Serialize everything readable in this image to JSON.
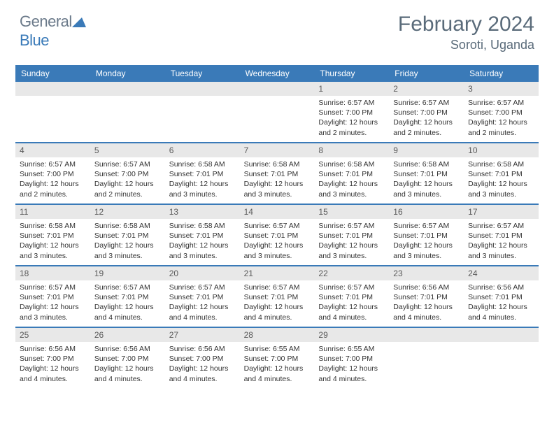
{
  "brand": {
    "name_part1": "General",
    "name_part2": "Blue"
  },
  "title": "February 2024",
  "location": "Soroti, Uganda",
  "colors": {
    "header_bg": "#3a7ab8",
    "header_text": "#ffffff",
    "daynum_bg": "#e8e8e8",
    "text": "#333333",
    "title_color": "#5a6b7a"
  },
  "day_headers": [
    "Sunday",
    "Monday",
    "Tuesday",
    "Wednesday",
    "Thursday",
    "Friday",
    "Saturday"
  ],
  "weeks": [
    [
      {
        "n": "",
        "sr": "",
        "ss": "",
        "dl": ""
      },
      {
        "n": "",
        "sr": "",
        "ss": "",
        "dl": ""
      },
      {
        "n": "",
        "sr": "",
        "ss": "",
        "dl": ""
      },
      {
        "n": "",
        "sr": "",
        "ss": "",
        "dl": ""
      },
      {
        "n": "1",
        "sr": "Sunrise: 6:57 AM",
        "ss": "Sunset: 7:00 PM",
        "dl": "Daylight: 12 hours and 2 minutes."
      },
      {
        "n": "2",
        "sr": "Sunrise: 6:57 AM",
        "ss": "Sunset: 7:00 PM",
        "dl": "Daylight: 12 hours and 2 minutes."
      },
      {
        "n": "3",
        "sr": "Sunrise: 6:57 AM",
        "ss": "Sunset: 7:00 PM",
        "dl": "Daylight: 12 hours and 2 minutes."
      }
    ],
    [
      {
        "n": "4",
        "sr": "Sunrise: 6:57 AM",
        "ss": "Sunset: 7:00 PM",
        "dl": "Daylight: 12 hours and 2 minutes."
      },
      {
        "n": "5",
        "sr": "Sunrise: 6:57 AM",
        "ss": "Sunset: 7:00 PM",
        "dl": "Daylight: 12 hours and 2 minutes."
      },
      {
        "n": "6",
        "sr": "Sunrise: 6:58 AM",
        "ss": "Sunset: 7:01 PM",
        "dl": "Daylight: 12 hours and 3 minutes."
      },
      {
        "n": "7",
        "sr": "Sunrise: 6:58 AM",
        "ss": "Sunset: 7:01 PM",
        "dl": "Daylight: 12 hours and 3 minutes."
      },
      {
        "n": "8",
        "sr": "Sunrise: 6:58 AM",
        "ss": "Sunset: 7:01 PM",
        "dl": "Daylight: 12 hours and 3 minutes."
      },
      {
        "n": "9",
        "sr": "Sunrise: 6:58 AM",
        "ss": "Sunset: 7:01 PM",
        "dl": "Daylight: 12 hours and 3 minutes."
      },
      {
        "n": "10",
        "sr": "Sunrise: 6:58 AM",
        "ss": "Sunset: 7:01 PM",
        "dl": "Daylight: 12 hours and 3 minutes."
      }
    ],
    [
      {
        "n": "11",
        "sr": "Sunrise: 6:58 AM",
        "ss": "Sunset: 7:01 PM",
        "dl": "Daylight: 12 hours and 3 minutes."
      },
      {
        "n": "12",
        "sr": "Sunrise: 6:58 AM",
        "ss": "Sunset: 7:01 PM",
        "dl": "Daylight: 12 hours and 3 minutes."
      },
      {
        "n": "13",
        "sr": "Sunrise: 6:58 AM",
        "ss": "Sunset: 7:01 PM",
        "dl": "Daylight: 12 hours and 3 minutes."
      },
      {
        "n": "14",
        "sr": "Sunrise: 6:57 AM",
        "ss": "Sunset: 7:01 PM",
        "dl": "Daylight: 12 hours and 3 minutes."
      },
      {
        "n": "15",
        "sr": "Sunrise: 6:57 AM",
        "ss": "Sunset: 7:01 PM",
        "dl": "Daylight: 12 hours and 3 minutes."
      },
      {
        "n": "16",
        "sr": "Sunrise: 6:57 AM",
        "ss": "Sunset: 7:01 PM",
        "dl": "Daylight: 12 hours and 3 minutes."
      },
      {
        "n": "17",
        "sr": "Sunrise: 6:57 AM",
        "ss": "Sunset: 7:01 PM",
        "dl": "Daylight: 12 hours and 3 minutes."
      }
    ],
    [
      {
        "n": "18",
        "sr": "Sunrise: 6:57 AM",
        "ss": "Sunset: 7:01 PM",
        "dl": "Daylight: 12 hours and 3 minutes."
      },
      {
        "n": "19",
        "sr": "Sunrise: 6:57 AM",
        "ss": "Sunset: 7:01 PM",
        "dl": "Daylight: 12 hours and 4 minutes."
      },
      {
        "n": "20",
        "sr": "Sunrise: 6:57 AM",
        "ss": "Sunset: 7:01 PM",
        "dl": "Daylight: 12 hours and 4 minutes."
      },
      {
        "n": "21",
        "sr": "Sunrise: 6:57 AM",
        "ss": "Sunset: 7:01 PM",
        "dl": "Daylight: 12 hours and 4 minutes."
      },
      {
        "n": "22",
        "sr": "Sunrise: 6:57 AM",
        "ss": "Sunset: 7:01 PM",
        "dl": "Daylight: 12 hours and 4 minutes."
      },
      {
        "n": "23",
        "sr": "Sunrise: 6:56 AM",
        "ss": "Sunset: 7:01 PM",
        "dl": "Daylight: 12 hours and 4 minutes."
      },
      {
        "n": "24",
        "sr": "Sunrise: 6:56 AM",
        "ss": "Sunset: 7:01 PM",
        "dl": "Daylight: 12 hours and 4 minutes."
      }
    ],
    [
      {
        "n": "25",
        "sr": "Sunrise: 6:56 AM",
        "ss": "Sunset: 7:00 PM",
        "dl": "Daylight: 12 hours and 4 minutes."
      },
      {
        "n": "26",
        "sr": "Sunrise: 6:56 AM",
        "ss": "Sunset: 7:00 PM",
        "dl": "Daylight: 12 hours and 4 minutes."
      },
      {
        "n": "27",
        "sr": "Sunrise: 6:56 AM",
        "ss": "Sunset: 7:00 PM",
        "dl": "Daylight: 12 hours and 4 minutes."
      },
      {
        "n": "28",
        "sr": "Sunrise: 6:55 AM",
        "ss": "Sunset: 7:00 PM",
        "dl": "Daylight: 12 hours and 4 minutes."
      },
      {
        "n": "29",
        "sr": "Sunrise: 6:55 AM",
        "ss": "Sunset: 7:00 PM",
        "dl": "Daylight: 12 hours and 4 minutes."
      },
      {
        "n": "",
        "sr": "",
        "ss": "",
        "dl": ""
      },
      {
        "n": "",
        "sr": "",
        "ss": "",
        "dl": ""
      }
    ]
  ]
}
